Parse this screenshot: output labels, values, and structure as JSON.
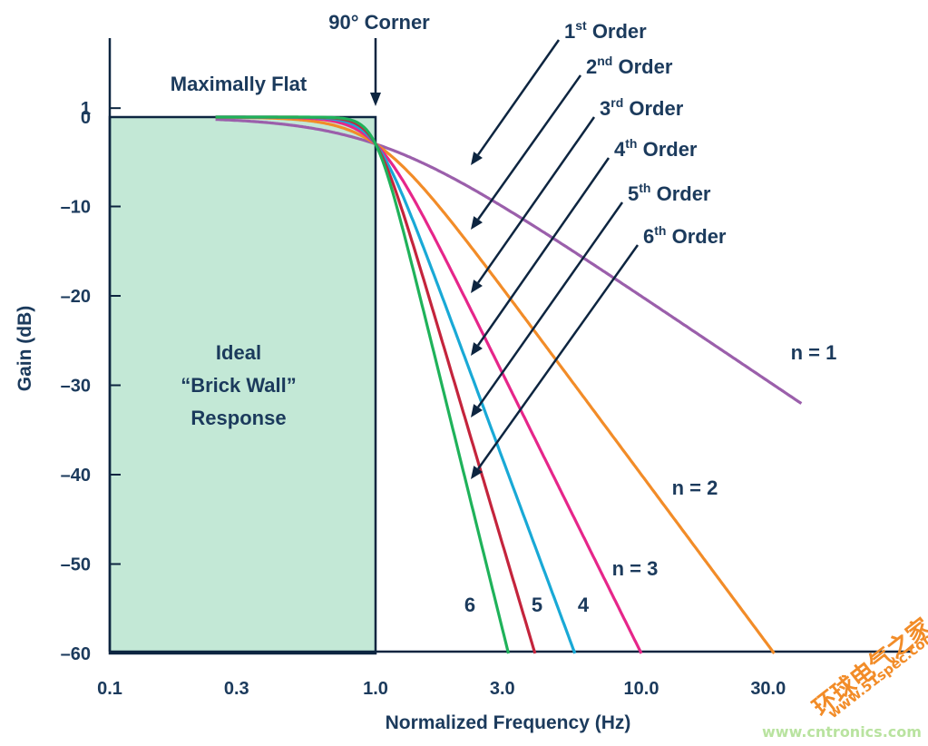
{
  "chart_data": {
    "type": "line",
    "title": "",
    "xlabel": "Normalized Frequency (Hz)",
    "ylabel": "Gain (dB)",
    "xscale": "log",
    "xlim": [
      0.1,
      40
    ],
    "ylim": [
      -60,
      1
    ],
    "xticks": [
      {
        "value": 0.1,
        "label": "0.1"
      },
      {
        "value": 0.3,
        "label": "0.3"
      },
      {
        "value": 1.0,
        "label": "1.0"
      },
      {
        "value": 3.0,
        "label": "3.0"
      },
      {
        "value": 10.0,
        "label": "10.0"
      },
      {
        "value": 30.0,
        "label": "30.0"
      }
    ],
    "yticks": [
      {
        "value": 1,
        "label": "1"
      },
      {
        "value": 0,
        "label": "0"
      },
      {
        "value": -10,
        "label": "–10"
      },
      {
        "value": -20,
        "label": "–20"
      },
      {
        "value": -30,
        "label": "–30"
      },
      {
        "value": -40,
        "label": "–40"
      },
      {
        "value": -50,
        "label": "–50"
      },
      {
        "value": -60,
        "label": "–60"
      }
    ],
    "grid": false,
    "ideal_region": {
      "x_start": 0.1,
      "x_end": 1.0,
      "y_top": 0,
      "y_bottom": -60,
      "color": "#c3e8d6"
    },
    "series": [
      {
        "order": 1,
        "color": "#9b5fab"
      },
      {
        "order": 2,
        "color": "#f28c28"
      },
      {
        "order": 3,
        "color": "#e6268a"
      },
      {
        "order": 4,
        "color": "#19a9d6"
      },
      {
        "order": 5,
        "color": "#c4243c"
      },
      {
        "order": 6,
        "color": "#1fb25a"
      }
    ],
    "annotations": {
      "corner": {
        "text": "90° Corner",
        "x": 1.0
      },
      "flat": {
        "text": "Maximally Flat"
      },
      "ideal": [
        "Ideal",
        "“Brick Wall”",
        "Response"
      ],
      "order_labels": [
        {
          "num": "1",
          "sup": "st",
          "rest": " Order"
        },
        {
          "num": "2",
          "sup": "nd",
          "rest": " Order"
        },
        {
          "num": "3",
          "sup": "rd",
          "rest": " Order"
        },
        {
          "num": "4",
          "sup": "th",
          "rest": " Order"
        },
        {
          "num": "5",
          "sup": "th",
          "rest": " Order"
        },
        {
          "num": "6",
          "sup": "th",
          "rest": " Order"
        }
      ],
      "curve_labels": [
        {
          "text": "n = 1",
          "order": 1
        },
        {
          "text": "n = 2",
          "order": 2
        },
        {
          "text": "n = 3",
          "order": 3
        },
        {
          "text": "4",
          "order": 4
        },
        {
          "text": "5",
          "order": 5
        },
        {
          "text": "6",
          "order": 6
        }
      ]
    },
    "watermark": {
      "cn": "环球电气之家",
      "url1": "www.51spec.com",
      "url2": "www.cntronics.com"
    }
  }
}
